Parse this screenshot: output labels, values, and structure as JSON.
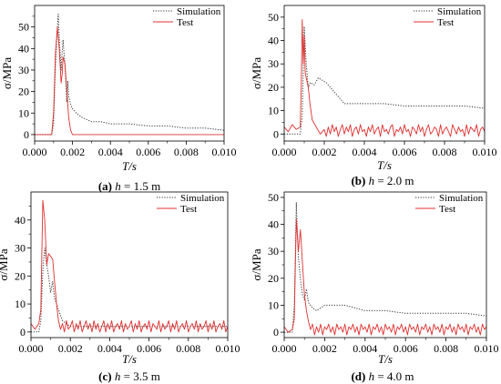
{
  "figure": {
    "panels": [
      {
        "id": "a",
        "caption_tag": "(a)",
        "caption_var": "h",
        "caption_rest": " = 1.5 m"
      },
      {
        "id": "b",
        "caption_tag": "(b)",
        "caption_var": "h",
        "caption_rest": " = 2.0 m"
      },
      {
        "id": "c",
        "caption_tag": "(c)",
        "caption_var": "h",
        "caption_rest": " = 3.5 m"
      },
      {
        "id": "d",
        "caption_tag": "(d)",
        "caption_var": "h",
        "caption_rest": " = 4.0 m"
      }
    ]
  },
  "chart_data": [
    {
      "type": "line",
      "panel": "a",
      "xlabel": "T/s",
      "ylabel": "σ/MPa",
      "xlim": [
        0,
        0.01
      ],
      "ylim": [
        -3,
        60
      ],
      "xticks": [
        "0.000",
        "0.002",
        "0.004",
        "0.006",
        "0.008",
        "0.010"
      ],
      "yticks": [
        0,
        10,
        20,
        30,
        40,
        50
      ],
      "legend_position": "top-right",
      "series": [
        {
          "name": "Simulation",
          "style": "dotted",
          "color": "#333333",
          "x": [
            0,
            0.0009,
            0.001,
            0.0011,
            0.0012,
            0.00125,
            0.0013,
            0.0014,
            0.00145,
            0.0015,
            0.0016,
            0.0017,
            0.00175,
            0.0018,
            0.0019,
            0.002,
            0.0022,
            0.0025,
            0.003,
            0.0035,
            0.004,
            0.005,
            0.006,
            0.007,
            0.008,
            0.009,
            0.01
          ],
          "y": [
            0,
            0,
            5,
            32,
            50,
            56,
            45,
            30,
            38,
            44,
            32,
            15,
            25,
            18,
            14,
            12,
            10,
            8,
            6,
            6,
            5,
            5,
            4,
            4,
            3,
            3,
            2
          ]
        },
        {
          "name": "Test",
          "style": "solid",
          "color": "#e03030",
          "x": [
            0,
            0.0009,
            0.001,
            0.0011,
            0.0012,
            0.0013,
            0.0014,
            0.00145,
            0.0015,
            0.0016,
            0.0017,
            0.0018,
            0.0019,
            0.002,
            0.0025,
            0.003,
            0.004,
            0.005,
            0.006,
            0.007,
            0.008,
            0.009,
            0.01
          ],
          "y": [
            0,
            0,
            10,
            38,
            50,
            40,
            24,
            28,
            36,
            33,
            20,
            8,
            2,
            0,
            0,
            0,
            0,
            0,
            0,
            0,
            0,
            0,
            0
          ]
        }
      ]
    },
    {
      "type": "line",
      "panel": "b",
      "xlabel": "T/s",
      "ylabel": "σ/MPa",
      "xlim": [
        0,
        0.01
      ],
      "ylim": [
        -3,
        55
      ],
      "xticks": [
        "0.000",
        "0.002",
        "0.004",
        "0.006",
        "0.008",
        "0.010"
      ],
      "yticks": [
        0,
        10,
        20,
        30,
        40,
        50
      ],
      "legend_position": "top-right",
      "series": [
        {
          "name": "Simulation",
          "style": "dotted",
          "color": "#333333",
          "x": [
            0,
            0.0008,
            0.0009,
            0.001,
            0.0011,
            0.0012,
            0.0013,
            0.0015,
            0.0017,
            0.0019,
            0.0021,
            0.0023,
            0.0025,
            0.0027,
            0.0029,
            0.003,
            0.004,
            0.005,
            0.006,
            0.007,
            0.008,
            0.009,
            0.01
          ],
          "y": [
            0,
            0,
            8,
            46,
            30,
            20,
            22,
            21,
            24,
            23,
            22,
            20,
            18,
            16,
            14,
            13,
            13,
            13,
            12,
            12,
            12,
            12,
            11
          ]
        },
        {
          "name": "Test",
          "style": "solid",
          "color": "#e03030",
          "x": [
            0,
            0.0002,
            0.0004,
            0.0006,
            0.0008,
            0.00085,
            0.0009,
            0.00095,
            0.001,
            0.00105,
            0.0011,
            0.0012,
            0.0013,
            0.0014,
            0.0016,
            0.0018,
            0.002,
            0.0021,
            0.0022,
            0.0023,
            0.0024,
            0.0025,
            0.0026,
            0.0027,
            0.0028,
            0.0029,
            0.003,
            0.0031,
            0.0032,
            0.0033,
            0.0034,
            0.0035,
            0.0036,
            0.0037,
            0.0038,
            0.0039,
            0.004,
            0.0041,
            0.0042,
            0.0043,
            0.0044,
            0.0045,
            0.0046,
            0.0047,
            0.0048,
            0.0049,
            0.005,
            0.0051,
            0.0052,
            0.0053,
            0.0054,
            0.0055,
            0.0056,
            0.0057,
            0.0058,
            0.0059,
            0.006,
            0.0061,
            0.0062,
            0.0063,
            0.0064,
            0.0065,
            0.0066,
            0.0067,
            0.0068,
            0.0069,
            0.007,
            0.0071,
            0.0072,
            0.0073,
            0.0074,
            0.0075,
            0.0076,
            0.0077,
            0.0078,
            0.0079,
            0.008,
            0.0081,
            0.0082,
            0.0083,
            0.0084,
            0.0085,
            0.0086,
            0.0087,
            0.0088,
            0.0089,
            0.009,
            0.0091,
            0.0092,
            0.0093,
            0.0094,
            0.0095,
            0.0096,
            0.0097,
            0.0098,
            0.0099,
            0.01
          ],
          "y": [
            3,
            1,
            4,
            2,
            3,
            20,
            49,
            30,
            42,
            26,
            24,
            20,
            12,
            6,
            3,
            0,
            2,
            -1,
            3,
            0,
            4,
            1,
            3,
            -1,
            2,
            4,
            0,
            3,
            1,
            4,
            -1,
            2,
            3,
            0,
            4,
            1,
            2,
            -1,
            3,
            1,
            4,
            0,
            2,
            3,
            -1,
            4,
            1,
            2,
            0,
            3,
            4,
            -1,
            2,
            1,
            3,
            0,
            4,
            1,
            2,
            -1,
            3,
            2,
            0,
            4,
            1,
            3,
            -1,
            2,
            4,
            0,
            1,
            3,
            2,
            -1,
            4,
            0,
            2,
            3,
            1,
            -1,
            4,
            2,
            0,
            3,
            1,
            2,
            -1,
            4,
            0,
            3,
            2,
            1,
            4,
            -1,
            2,
            3,
            1
          ]
        }
      ]
    },
    {
      "type": "line",
      "panel": "c",
      "xlabel": "T/s",
      "ylabel": "σ/MPa",
      "xlim": [
        0,
        0.01
      ],
      "ylim": [
        -2,
        50
      ],
      "xticks": [
        "0.000",
        "0.002",
        "0.004",
        "0.006",
        "0.008",
        "0.010"
      ],
      "yticks": [
        0,
        10,
        20,
        30,
        40
      ],
      "legend_position": "top-right",
      "series": [
        {
          "name": "Simulation",
          "style": "dotted",
          "color": "#333333",
          "x": [
            0,
            0.0004,
            0.0005,
            0.0006,
            0.0007,
            0.0008,
            0.0009,
            0.001,
            0.0011,
            0.0012,
            0.0013,
            0.0014,
            0.0015,
            0.0016,
            0.0018,
            0.002,
            0.0025,
            0.003,
            0.004,
            0.005,
            0.006,
            0.007,
            0.008,
            0.009,
            0.01
          ],
          "y": [
            0,
            0,
            4,
            22,
            30,
            24,
            20,
            14,
            18,
            12,
            10,
            8,
            6,
            4,
            3,
            2,
            2,
            2,
            2,
            2,
            2,
            2,
            2,
            2,
            2
          ]
        },
        {
          "name": "Test",
          "style": "solid",
          "color": "#e03030",
          "x": [
            0,
            0.0002,
            0.0004,
            0.0005,
            0.0006,
            0.0007,
            0.0008,
            0.0009,
            0.001,
            0.0011,
            0.0012,
            0.0013,
            0.0014,
            0.0015,
            0.0016,
            0.0017,
            0.0018,
            0.0019,
            0.002,
            0.0021,
            0.0022,
            0.0023,
            0.0024,
            0.0025,
            0.0026,
            0.0027,
            0.0028,
            0.0029,
            0.003,
            0.0031,
            0.0032,
            0.0033,
            0.0034,
            0.0035,
            0.0036,
            0.0037,
            0.0038,
            0.0039,
            0.004,
            0.0041,
            0.0042,
            0.0043,
            0.0044,
            0.0045,
            0.0046,
            0.0047,
            0.0048,
            0.0049,
            0.005,
            0.0051,
            0.0052,
            0.0053,
            0.0054,
            0.0055,
            0.0056,
            0.0057,
            0.0058,
            0.0059,
            0.006,
            0.0061,
            0.0062,
            0.0063,
            0.0064,
            0.0065,
            0.0066,
            0.0067,
            0.0068,
            0.0069,
            0.007,
            0.0071,
            0.0072,
            0.0073,
            0.0074,
            0.0075,
            0.0076,
            0.0077,
            0.0078,
            0.0079,
            0.008,
            0.0081,
            0.0082,
            0.0083,
            0.0084,
            0.0085,
            0.0086,
            0.0087,
            0.0088,
            0.0089,
            0.009,
            0.0091,
            0.0092,
            0.0093,
            0.0094,
            0.0095,
            0.0096,
            0.0097,
            0.0098,
            0.0099,
            0.01
          ],
          "y": [
            3,
            1,
            3,
            8,
            47,
            40,
            24,
            28,
            27,
            26,
            18,
            10,
            4,
            1,
            3,
            0,
            4,
            1,
            2,
            4,
            0,
            3,
            1,
            4,
            0,
            2,
            4,
            1,
            3,
            0,
            4,
            1,
            3,
            0,
            2,
            4,
            0,
            3,
            1,
            4,
            0,
            2,
            3,
            1,
            4,
            0,
            3,
            1,
            2,
            4,
            0,
            3,
            1,
            4,
            0,
            2,
            3,
            1,
            4,
            0,
            3,
            2,
            1,
            4,
            0,
            3,
            1,
            2,
            4,
            0,
            3,
            1,
            4,
            0,
            2,
            3,
            1,
            4,
            0,
            2,
            3,
            1,
            4,
            0,
            3,
            1,
            2,
            4,
            0,
            3,
            1,
            4,
            0,
            2,
            3,
            1,
            4,
            0,
            2
          ]
        }
      ]
    },
    {
      "type": "line",
      "panel": "d",
      "xlabel": "T/s",
      "ylabel": "σ/MPa",
      "xlim": [
        0,
        0.01
      ],
      "ylim": [
        -2,
        52
      ],
      "xticks": [
        "0.000",
        "0.002",
        "0.004",
        "0.006",
        "0.008",
        "0.010"
      ],
      "yticks": [
        0,
        10,
        20,
        30,
        40,
        50
      ],
      "legend_position": "top-right",
      "series": [
        {
          "name": "Simulation",
          "style": "dotted",
          "color": "#333333",
          "x": [
            0,
            0.0004,
            0.0005,
            0.0006,
            0.0007,
            0.0008,
            0.0009,
            0.001,
            0.0011,
            0.0012,
            0.0014,
            0.0016,
            0.0018,
            0.002,
            0.0025,
            0.003,
            0.0035,
            0.004,
            0.005,
            0.006,
            0.007,
            0.008,
            0.009,
            0.01
          ],
          "y": [
            0,
            0,
            10,
            48,
            28,
            20,
            14,
            12,
            16,
            11,
            9,
            8,
            9,
            10,
            10,
            10,
            9,
            8,
            8,
            7,
            7,
            7,
            7,
            6
          ]
        },
        {
          "name": "Test",
          "style": "solid",
          "color": "#e03030",
          "x": [
            0,
            0.0002,
            0.0004,
            0.0005,
            0.0006,
            0.0007,
            0.0008,
            0.0009,
            0.001,
            0.0011,
            0.0012,
            0.0013,
            0.0014,
            0.0015,
            0.0016,
            0.0017,
            0.0018,
            0.0019,
            0.002,
            0.0021,
            0.0022,
            0.0023,
            0.0024,
            0.0025,
            0.0026,
            0.0027,
            0.0028,
            0.0029,
            0.003,
            0.0031,
            0.0032,
            0.0033,
            0.0034,
            0.0035,
            0.0036,
            0.0037,
            0.0038,
            0.0039,
            0.004,
            0.0041,
            0.0042,
            0.0043,
            0.0044,
            0.0045,
            0.0046,
            0.0047,
            0.0048,
            0.0049,
            0.005,
            0.0051,
            0.0052,
            0.0053,
            0.0054,
            0.0055,
            0.0056,
            0.0057,
            0.0058,
            0.0059,
            0.006,
            0.0061,
            0.0062,
            0.0063,
            0.0064,
            0.0065,
            0.0066,
            0.0067,
            0.0068,
            0.0069,
            0.007,
            0.0071,
            0.0072,
            0.0073,
            0.0074,
            0.0075,
            0.0076,
            0.0077,
            0.0078,
            0.0079,
            0.008,
            0.0081,
            0.0082,
            0.0083,
            0.0084,
            0.0085,
            0.0086,
            0.0087,
            0.0088,
            0.0089,
            0.009,
            0.0091,
            0.0092,
            0.0093,
            0.0094,
            0.0095,
            0.0096,
            0.0097,
            0.0098,
            0.0099,
            0.01
          ],
          "y": [
            2,
            0,
            1,
            5,
            42,
            30,
            38,
            26,
            14,
            8,
            4,
            1,
            3,
            -1,
            2,
            0,
            3,
            -1,
            2,
            1,
            3,
            0,
            2,
            -1,
            3,
            1,
            2,
            0,
            3,
            -1,
            2,
            1,
            3,
            0,
            2,
            -1,
            3,
            1,
            2,
            0,
            3,
            -1,
            2,
            1,
            3,
            0,
            2,
            -1,
            3,
            1,
            2,
            0,
            3,
            -1,
            2,
            1,
            3,
            0,
            2,
            -1,
            3,
            1,
            2,
            0,
            3,
            -1,
            2,
            1,
            3,
            0,
            2,
            -1,
            3,
            1,
            2,
            0,
            3,
            -1,
            2,
            1,
            3,
            0,
            2,
            -1,
            3,
            1,
            2,
            0,
            3,
            -1,
            2,
            1,
            3,
            0,
            2,
            -1,
            3,
            1,
            2
          ]
        }
      ]
    }
  ]
}
